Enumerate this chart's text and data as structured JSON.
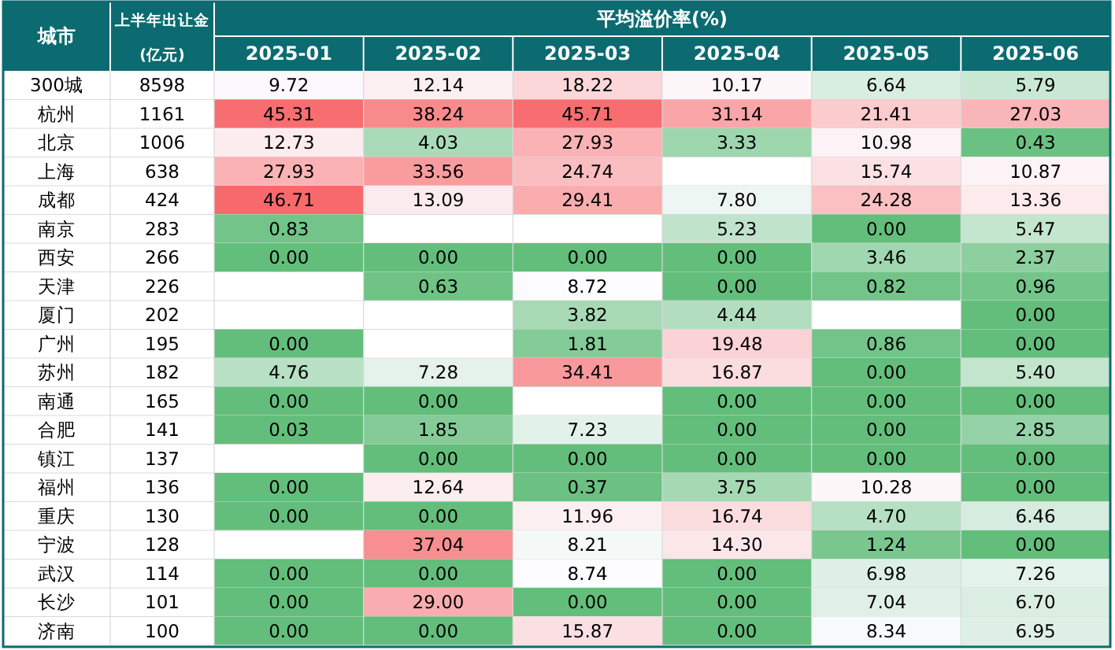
{
  "chart_data": {
    "type": "heatmap",
    "xlabel": "平均溢价率(%)",
    "ylabel": "城市",
    "y2label": "上半年出让金(亿元)",
    "categories": [
      "2025-01",
      "2025-02",
      "2025-03",
      "2025-04",
      "2025-05",
      "2025-06"
    ],
    "y_categories": [
      "300城",
      "杭州",
      "北京",
      "上海",
      "成都",
      "南京",
      "西安",
      "天津",
      "厦门",
      "广州",
      "苏州",
      "南通",
      "合肥",
      "镇江",
      "福州",
      "重庆",
      "宁波",
      "武汉",
      "长沙",
      "济南"
    ],
    "y2_categories": [
      "8598",
      "1161",
      "1006",
      "638",
      "424",
      "283",
      "266",
      "226",
      "202",
      "195",
      "182",
      "165",
      "141",
      "137",
      "136",
      "130",
      "128",
      "114",
      "101",
      "100"
    ],
    "cells": [
      [
        9.72,
        12.14,
        18.22,
        10.17,
        6.64,
        5.79
      ],
      [
        45.31,
        38.24,
        45.71,
        31.14,
        21.41,
        27.03
      ],
      [
        12.73,
        4.03,
        27.93,
        3.33,
        10.98,
        0.43
      ],
      [
        27.93,
        33.56,
        24.74,
        null,
        15.74,
        10.87
      ],
      [
        46.71,
        13.09,
        29.41,
        7.8,
        24.28,
        13.36
      ],
      [
        0.83,
        null,
        null,
        5.23,
        0.0,
        5.47
      ],
      [
        0.0,
        0.0,
        0.0,
        0.0,
        3.46,
        2.37
      ],
      [
        null,
        0.63,
        8.72,
        0.0,
        0.82,
        0.96
      ],
      [
        null,
        null,
        3.82,
        4.44,
        null,
        0.0
      ],
      [
        0.0,
        null,
        1.81,
        19.48,
        0.86,
        0.0
      ],
      [
        4.76,
        7.28,
        34.41,
        16.87,
        0.0,
        5.4
      ],
      [
        0.0,
        0.0,
        null,
        0.0,
        0.0,
        0.0
      ],
      [
        0.03,
        1.85,
        7.23,
        0.0,
        0.0,
        2.85
      ],
      [
        null,
        0.0,
        0.0,
        0.0,
        0.0,
        0.0
      ],
      [
        0.0,
        12.64,
        0.37,
        3.75,
        10.28,
        0.0
      ],
      [
        0.0,
        0.0,
        11.96,
        16.74,
        4.7,
        6.46
      ],
      [
        null,
        37.04,
        8.21,
        14.3,
        1.24,
        0.0
      ],
      [
        0.0,
        0.0,
        8.74,
        0.0,
        6.98,
        7.26
      ],
      [
        0.0,
        29.0,
        0.0,
        0.0,
        7.04,
        6.7
      ],
      [
        0.0,
        0.0,
        15.87,
        0.0,
        8.34,
        6.95
      ]
    ],
    "cell_labels": [
      [
        "9.72",
        "12.14",
        "18.22",
        "10.17",
        "6.64",
        "5.79"
      ],
      [
        "45.31",
        "38.24",
        "45.71",
        "31.14",
        "21.41",
        "27.03"
      ],
      [
        "12.73",
        "4.03",
        "27.93",
        "3.33",
        "10.98",
        "0.43"
      ],
      [
        "27.93",
        "33.56",
        "24.74",
        null,
        "15.74",
        "10.87"
      ],
      [
        "46.71",
        "13.09",
        "29.41",
        "7.80",
        "24.28",
        "13.36"
      ],
      [
        "0.83",
        null,
        null,
        "5.23",
        "0.00",
        "5.47"
      ],
      [
        "0.00",
        "0.00",
        "0.00",
        "0.00",
        "3.46",
        "2.37"
      ],
      [
        null,
        "0.63",
        "8.72",
        "0.00",
        "0.82",
        "0.96"
      ],
      [
        null,
        null,
        "3.82",
        "4.44",
        null,
        "0.00"
      ],
      [
        "0.00",
        null,
        "1.81",
        "19.48",
        "0.86",
        "0.00"
      ],
      [
        "4.76",
        "7.28",
        "34.41",
        "16.87",
        "0.00",
        "5.40"
      ],
      [
        "0.00",
        "0.00",
        null,
        "0.00",
        "0.00",
        "0.00"
      ],
      [
        "0.03",
        "1.85",
        "7.23",
        "0.00",
        "0.00",
        "2.85"
      ],
      [
        null,
        "0.00",
        "0.00",
        "0.00",
        "0.00",
        "0.00"
      ],
      [
        "0.00",
        "12.64",
        "0.37",
        "3.75",
        "10.28",
        "0.00"
      ],
      [
        "0.00",
        "0.00",
        "11.96",
        "16.74",
        "4.70",
        "6.46"
      ],
      [
        null,
        "37.04",
        "8.21",
        "14.30",
        "1.24",
        "0.00"
      ],
      [
        "0.00",
        "0.00",
        "8.74",
        "0.00",
        "6.98",
        "7.26"
      ],
      [
        "0.00",
        "29.00",
        "0.00",
        "0.00",
        "7.04",
        "6.70"
      ],
      [
        "0.00",
        "0.00",
        "15.87",
        "0.00",
        "8.34",
        "6.95"
      ]
    ]
  }
}
